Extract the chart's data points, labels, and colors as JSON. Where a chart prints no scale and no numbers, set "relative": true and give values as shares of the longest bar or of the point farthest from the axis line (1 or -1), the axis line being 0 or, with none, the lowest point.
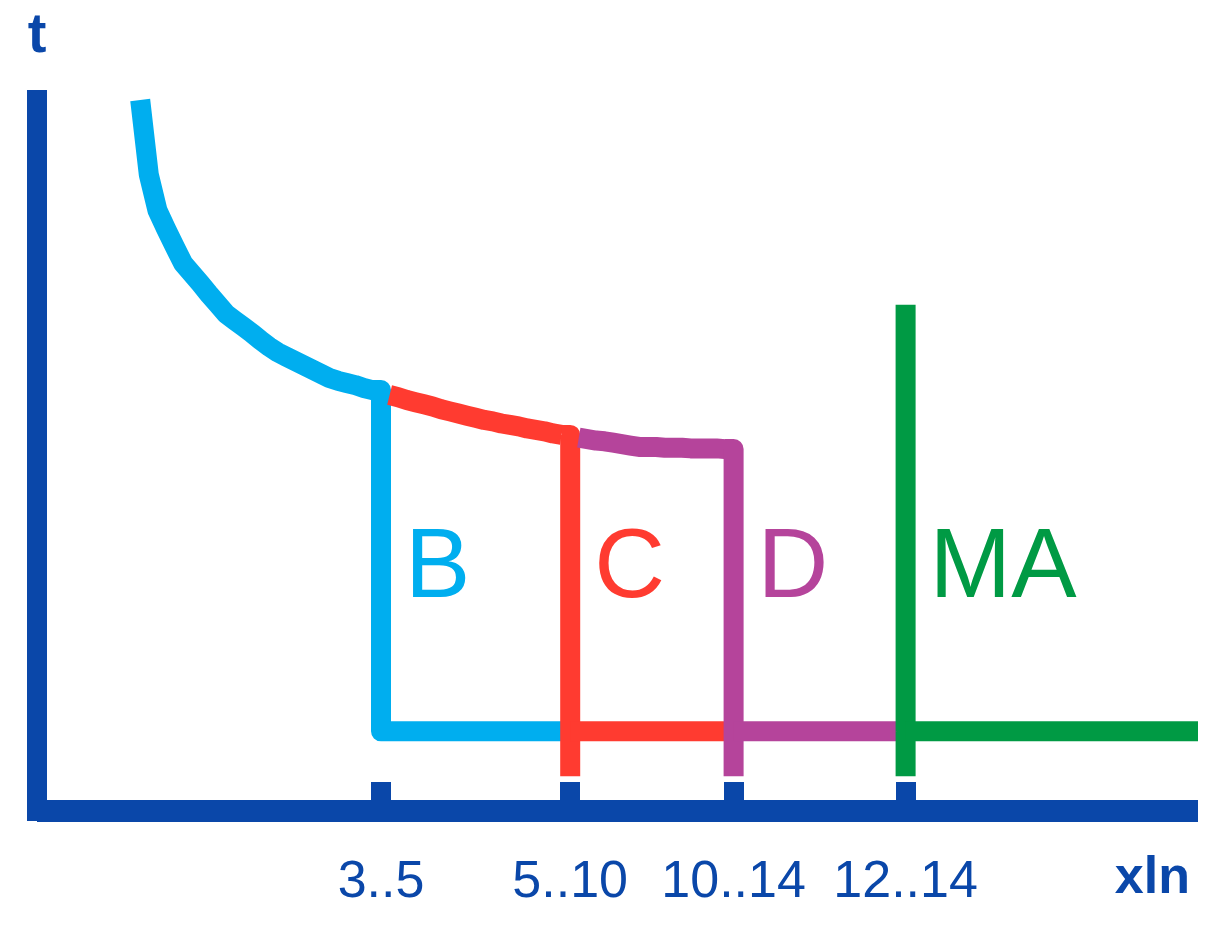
{
  "chart_data": {
    "type": "line",
    "relative": true,
    "xlabel": "xln",
    "ylabel": "t",
    "marker": "none",
    "line_style": "solid",
    "categories": [
      null,
      null,
      null,
      null,
      null,
      null,
      null,
      null,
      null,
      null,
      null,
      null,
      null,
      null,
      null,
      null,
      null,
      null,
      null,
      null,
      null,
      null,
      null,
      null,
      null,
      null,
      null,
      null,
      null,
      null,
      null,
      null,
      null,
      null,
      null,
      null,
      null,
      null,
      null,
      null,
      "3..5",
      null,
      null,
      null,
      null,
      null,
      null,
      null,
      null,
      null,
      null,
      null,
      null,
      null,
      null,
      null,
      null,
      null,
      null,
      null,
      null,
      null,
      "5..10",
      null,
      null,
      null,
      null,
      null,
      null,
      null,
      null,
      null,
      null,
      null,
      null,
      null,
      null,
      null,
      null,
      null,
      null,
      "10..14",
      null,
      null,
      null,
      null,
      null,
      null,
      null,
      null,
      null,
      null,
      null,
      null,
      null,
      null,
      null,
      null,
      null,
      null,
      null,
      "12..14",
      null,
      null,
      null,
      null,
      null,
      null,
      null,
      null,
      null,
      null,
      null,
      null,
      null,
      null,
      null,
      null,
      null,
      null,
      null,
      null,
      null,
      null,
      null,
      null,
      null,
      null,
      null,
      null,
      null,
      null,
      null,
      null,
      null,
      null
    ],
    "series": [
      {
        "color": "#00aeef",
        "values": [
          null,
          null,
          null,
          null,
          null,
          null,
          null,
          null,
          null,
          null,
          null,
          null,
          1,
          0.895,
          0.845,
          0.819,
          0.794,
          0.77,
          0.756,
          0.742,
          0.727,
          0.713,
          0.699,
          0.69,
          0.681,
          0.672,
          0.662,
          0.653,
          0.645,
          0.639,
          0.633,
          0.627,
          0.621,
          0.615,
          0.609,
          0.605,
          0.602,
          0.599,
          0.595,
          0.592,
          0.588,
          null,
          null,
          null,
          null,
          null,
          null,
          null,
          null,
          null,
          null,
          null,
          null,
          null,
          null,
          null,
          null,
          null,
          null,
          null,
          null,
          null,
          null,
          null,
          null,
          null,
          null,
          null,
          null,
          null,
          null,
          null,
          null,
          null,
          null,
          null,
          null,
          null,
          null,
          null,
          null,
          null,
          null,
          null,
          null,
          null,
          null,
          null,
          null,
          null,
          null,
          null,
          null,
          null,
          null,
          null,
          null,
          null,
          null,
          null,
          null,
          null,
          null,
          null,
          null,
          null,
          null,
          null,
          null,
          null,
          null,
          null,
          null,
          null,
          null,
          null,
          null,
          null,
          null,
          null,
          null,
          null,
          null,
          null,
          null,
          null,
          null,
          null,
          null,
          null,
          null,
          null,
          null,
          null,
          null,
          null
        ]
      },
      {
        "name": "B",
        "type": "step",
        "color": "#00aeef",
        "values": [
          null,
          null,
          null,
          null,
          null,
          null,
          null,
          null,
          null,
          null,
          null,
          null,
          null,
          null,
          null,
          null,
          null,
          null,
          null,
          null,
          null,
          null,
          null,
          null,
          null,
          null,
          null,
          null,
          null,
          null,
          null,
          null,
          null,
          null,
          null,
          null,
          null,
          null,
          null,
          0.592,
          0.112,
          0.112,
          0.112,
          0.112,
          0.112,
          0.112,
          0.112,
          0.112,
          0.112,
          0.112,
          0.112,
          0.112,
          0.112,
          0.112,
          0.112,
          0.112,
          0.112,
          0.112,
          0.112,
          0.112,
          0.112,
          0.112,
          0.112,
          null,
          null,
          null,
          null,
          null,
          null,
          null,
          null,
          null,
          null,
          null,
          null,
          null,
          null,
          null,
          null,
          null,
          null,
          null,
          null,
          null,
          null,
          null,
          null,
          null,
          null,
          null,
          null,
          null,
          null,
          null,
          null,
          null,
          null,
          null,
          null,
          null,
          null,
          null,
          null,
          null,
          null,
          null,
          null,
          null,
          null,
          null,
          null,
          null,
          null,
          null,
          null,
          null,
          null,
          null,
          null,
          null,
          null,
          null,
          null,
          null,
          null,
          null,
          null,
          null,
          null,
          null,
          null,
          null,
          null,
          null,
          null,
          null
        ]
      },
      {
        "color": "#ff3b30",
        "values": [
          null,
          null,
          null,
          null,
          null,
          null,
          null,
          null,
          null,
          null,
          null,
          null,
          null,
          null,
          null,
          null,
          null,
          null,
          null,
          null,
          null,
          null,
          null,
          null,
          null,
          null,
          null,
          null,
          null,
          null,
          null,
          null,
          null,
          null,
          null,
          null,
          null,
          null,
          null,
          null,
          null,
          0.585,
          0.582,
          0.578,
          0.575,
          0.572,
          0.569,
          0.565,
          0.562,
          0.559,
          0.556,
          0.553,
          0.55,
          0.548,
          0.545,
          0.543,
          0.541,
          0.538,
          0.536,
          0.534,
          0.531,
          0.529,
          null,
          null,
          null,
          null,
          null,
          null,
          null,
          null,
          null,
          null,
          null,
          null,
          null,
          null,
          null,
          null,
          null,
          null,
          null,
          null,
          null,
          null,
          null,
          null,
          null,
          null,
          null,
          null,
          null,
          null,
          null,
          null,
          null,
          null,
          null,
          null,
          null,
          null,
          null,
          null,
          null,
          null,
          null,
          null,
          null,
          null,
          null,
          null,
          null,
          null,
          null,
          null,
          null,
          null,
          null,
          null,
          null,
          null,
          null,
          null,
          null,
          null,
          null,
          null,
          null,
          null,
          null,
          null,
          null,
          null,
          null,
          null,
          null,
          null
        ]
      },
      {
        "name": "C",
        "type": "step",
        "color": "#ff3b30",
        "values": [
          null,
          null,
          null,
          null,
          null,
          null,
          null,
          null,
          null,
          null,
          null,
          null,
          null,
          null,
          null,
          null,
          null,
          null,
          null,
          null,
          null,
          null,
          null,
          null,
          null,
          null,
          null,
          null,
          null,
          null,
          null,
          null,
          null,
          null,
          null,
          null,
          null,
          null,
          null,
          null,
          null,
          null,
          null,
          null,
          null,
          null,
          null,
          null,
          null,
          null,
          null,
          null,
          null,
          null,
          null,
          null,
          null,
          null,
          null,
          null,
          null,
          0.529,
          0.049,
          null,
          null,
          null,
          null,
          null,
          null,
          null,
          null,
          null,
          null,
          null,
          null,
          null,
          null,
          null,
          null,
          null,
          null,
          null,
          null,
          null,
          null,
          null,
          null,
          null,
          null,
          null,
          null,
          null,
          null,
          null,
          null,
          null,
          null,
          null,
          null,
          null,
          null,
          null,
          null,
          null,
          null,
          null,
          null,
          null,
          null,
          null,
          null,
          null,
          null,
          null,
          null,
          null,
          null,
          null,
          null,
          null,
          null,
          null,
          null,
          null,
          null,
          null,
          null,
          null,
          null,
          null,
          null,
          null,
          null,
          null,
          null,
          null
        ]
      },
      {
        "color": "#ff3b30",
        "values": [
          null,
          null,
          null,
          null,
          null,
          null,
          null,
          null,
          null,
          null,
          null,
          null,
          null,
          null,
          null,
          null,
          null,
          null,
          null,
          null,
          null,
          null,
          null,
          null,
          null,
          null,
          null,
          null,
          null,
          null,
          null,
          null,
          null,
          null,
          null,
          null,
          null,
          null,
          null,
          null,
          null,
          null,
          null,
          null,
          null,
          null,
          null,
          null,
          null,
          null,
          null,
          null,
          null,
          null,
          null,
          null,
          null,
          null,
          null,
          null,
          null,
          null,
          0.112,
          0.112,
          0.112,
          0.112,
          0.112,
          0.112,
          0.112,
          0.112,
          0.112,
          0.112,
          0.112,
          0.112,
          0.112,
          0.112,
          0.112,
          0.112,
          0.112,
          0.112,
          0.112,
          0.112,
          null,
          null,
          null,
          null,
          null,
          null,
          null,
          null,
          null,
          null,
          null,
          null,
          null,
          null,
          null,
          null,
          null,
          null,
          null,
          null,
          null,
          null,
          null,
          null,
          null,
          null,
          null,
          null,
          null,
          null,
          null,
          null,
          null,
          null,
          null,
          null,
          null,
          null,
          null,
          null,
          null,
          null,
          null,
          null,
          null,
          null,
          null,
          null,
          null,
          null,
          null,
          null,
          null,
          null
        ]
      },
      {
        "color": "#b5449b",
        "values": [
          null,
          null,
          null,
          null,
          null,
          null,
          null,
          null,
          null,
          null,
          null,
          null,
          null,
          null,
          null,
          null,
          null,
          null,
          null,
          null,
          null,
          null,
          null,
          null,
          null,
          null,
          null,
          null,
          null,
          null,
          null,
          null,
          null,
          null,
          null,
          null,
          null,
          null,
          null,
          null,
          null,
          null,
          null,
          null,
          null,
          null,
          null,
          null,
          null,
          null,
          null,
          null,
          null,
          null,
          null,
          null,
          null,
          null,
          null,
          null,
          null,
          null,
          null,
          0.525,
          0.523,
          0.521,
          0.52,
          0.518,
          0.516,
          0.514,
          0.512,
          0.512,
          0.512,
          0.511,
          0.511,
          0.511,
          0.51,
          0.51,
          0.51,
          0.51,
          0.509,
          null,
          null,
          null,
          null,
          null,
          null,
          null,
          null,
          null,
          null,
          null,
          null,
          null,
          null,
          null,
          null,
          null,
          null,
          null,
          null,
          null,
          null,
          null,
          null,
          null,
          null,
          null,
          null,
          null,
          null,
          null,
          null,
          null,
          null,
          null,
          null,
          null,
          null,
          null,
          null,
          null,
          null,
          null,
          null,
          null,
          null,
          null,
          null,
          null,
          null,
          null,
          null,
          null,
          null,
          null
        ]
      },
      {
        "name": "D",
        "type": "step",
        "color": "#b5449b",
        "values": [
          null,
          null,
          null,
          null,
          null,
          null,
          null,
          null,
          null,
          null,
          null,
          null,
          null,
          null,
          null,
          null,
          null,
          null,
          null,
          null,
          null,
          null,
          null,
          null,
          null,
          null,
          null,
          null,
          null,
          null,
          null,
          null,
          null,
          null,
          null,
          null,
          null,
          null,
          null,
          null,
          null,
          null,
          null,
          null,
          null,
          null,
          null,
          null,
          null,
          null,
          null,
          null,
          null,
          null,
          null,
          null,
          null,
          null,
          null,
          null,
          null,
          null,
          null,
          null,
          null,
          null,
          null,
          null,
          null,
          null,
          null,
          null,
          null,
          null,
          null,
          null,
          null,
          null,
          null,
          null,
          0.509,
          0.049,
          null,
          null,
          null,
          null,
          null,
          null,
          null,
          null,
          null,
          null,
          null,
          null,
          null,
          null,
          null,
          null,
          null,
          null,
          null,
          null,
          null,
          null,
          null,
          null,
          null,
          null,
          null,
          null,
          null,
          null,
          null,
          null,
          null,
          null,
          null,
          null,
          null,
          null,
          null,
          null,
          null,
          null,
          null,
          null,
          null,
          null,
          null,
          null,
          null,
          null,
          null,
          null,
          null,
          null
        ]
      },
      {
        "color": "#b5449b",
        "values": [
          null,
          null,
          null,
          null,
          null,
          null,
          null,
          null,
          null,
          null,
          null,
          null,
          null,
          null,
          null,
          null,
          null,
          null,
          null,
          null,
          null,
          null,
          null,
          null,
          null,
          null,
          null,
          null,
          null,
          null,
          null,
          null,
          null,
          null,
          null,
          null,
          null,
          null,
          null,
          null,
          null,
          null,
          null,
          null,
          null,
          null,
          null,
          null,
          null,
          null,
          null,
          null,
          null,
          null,
          null,
          null,
          null,
          null,
          null,
          null,
          null,
          null,
          null,
          null,
          null,
          null,
          null,
          null,
          null,
          null,
          null,
          null,
          null,
          null,
          null,
          null,
          null,
          null,
          null,
          null,
          null,
          0.112,
          0.112,
          0.112,
          0.112,
          0.112,
          0.112,
          0.112,
          0.112,
          0.112,
          0.112,
          0.112,
          0.112,
          0.112,
          0.112,
          0.112,
          0.112,
          0.112,
          0.112,
          0.112,
          0.112,
          0.112,
          null,
          null,
          null,
          null,
          null,
          null,
          null,
          null,
          null,
          null,
          null,
          null,
          null,
          null,
          null,
          null,
          null,
          null,
          null,
          null,
          null,
          null,
          null,
          null,
          null,
          null,
          null,
          null,
          null,
          null,
          null,
          null,
          null,
          null
        ]
      },
      {
        "name": "MA",
        "type": "step",
        "color": "#009a44",
        "values": [
          null,
          null,
          null,
          null,
          null,
          null,
          null,
          null,
          null,
          null,
          null,
          null,
          null,
          null,
          null,
          null,
          null,
          null,
          null,
          null,
          null,
          null,
          null,
          null,
          null,
          null,
          null,
          null,
          null,
          null,
          null,
          null,
          null,
          null,
          null,
          null,
          null,
          null,
          null,
          null,
          null,
          null,
          null,
          null,
          null,
          null,
          null,
          null,
          null,
          null,
          null,
          null,
          null,
          null,
          null,
          null,
          null,
          null,
          null,
          null,
          null,
          null,
          null,
          null,
          null,
          null,
          null,
          null,
          null,
          null,
          null,
          null,
          null,
          null,
          null,
          null,
          null,
          null,
          null,
          null,
          null,
          null,
          null,
          null,
          null,
          null,
          null,
          null,
          null,
          null,
          null,
          null,
          null,
          null,
          null,
          null,
          null,
          null,
          null,
          null,
          0.112,
          0.712,
          null,
          null,
          null,
          null,
          null,
          null,
          null,
          null,
          null,
          null,
          null,
          null,
          null,
          null,
          null,
          null,
          null,
          null,
          null,
          null,
          null,
          null,
          null,
          null,
          null,
          null,
          null,
          null,
          null,
          null,
          null,
          null,
          null,
          null
        ]
      },
      {
        "type": "step",
        "color": "#009a44",
        "values": [
          null,
          null,
          null,
          null,
          null,
          null,
          null,
          null,
          null,
          null,
          null,
          null,
          null,
          null,
          null,
          null,
          null,
          null,
          null,
          null,
          null,
          null,
          null,
          null,
          null,
          null,
          null,
          null,
          null,
          null,
          null,
          null,
          null,
          null,
          null,
          null,
          null,
          null,
          null,
          null,
          null,
          null,
          null,
          null,
          null,
          null,
          null,
          null,
          null,
          null,
          null,
          null,
          null,
          null,
          null,
          null,
          null,
          null,
          null,
          null,
          null,
          null,
          null,
          null,
          null,
          null,
          null,
          null,
          null,
          null,
          null,
          null,
          null,
          null,
          null,
          null,
          null,
          null,
          null,
          null,
          null,
          null,
          null,
          null,
          null,
          null,
          null,
          null,
          null,
          null,
          null,
          null,
          null,
          null,
          null,
          null,
          null,
          null,
          null,
          null,
          0.112,
          0.049,
          null,
          null,
          null,
          null,
          null,
          null,
          null,
          null,
          null,
          null,
          null,
          null,
          null,
          null,
          null,
          null,
          null,
          null,
          null,
          null,
          null,
          null,
          null,
          null,
          null,
          null,
          null,
          null,
          null,
          null,
          null,
          null,
          null,
          null
        ]
      },
      {
        "color": "#009a44",
        "values": [
          null,
          null,
          null,
          null,
          null,
          null,
          null,
          null,
          null,
          null,
          null,
          null,
          null,
          null,
          null,
          null,
          null,
          null,
          null,
          null,
          null,
          null,
          null,
          null,
          null,
          null,
          null,
          null,
          null,
          null,
          null,
          null,
          null,
          null,
          null,
          null,
          null,
          null,
          null,
          null,
          null,
          null,
          null,
          null,
          null,
          null,
          null,
          null,
          null,
          null,
          null,
          null,
          null,
          null,
          null,
          null,
          null,
          null,
          null,
          null,
          null,
          null,
          null,
          null,
          null,
          null,
          null,
          null,
          null,
          null,
          null,
          null,
          null,
          null,
          null,
          null,
          null,
          null,
          null,
          null,
          null,
          null,
          null,
          null,
          null,
          null,
          null,
          null,
          null,
          null,
          null,
          null,
          null,
          null,
          null,
          null,
          null,
          null,
          null,
          null,
          null,
          0.112,
          0.112,
          0.112,
          0.112,
          0.112,
          0.112,
          0.112,
          0.112,
          0.112,
          0.112,
          0.112,
          0.112,
          0.112,
          0.112,
          0.112,
          0.112,
          0.112,
          0.112,
          0.112,
          0.112,
          0.112,
          0.112,
          0.112,
          0.112,
          0.112,
          0.112,
          0.112,
          0.112,
          0.112,
          0.112,
          0.112,
          0.112,
          0.112,
          0.112,
          0.112
        ]
      }
    ]
  }
}
